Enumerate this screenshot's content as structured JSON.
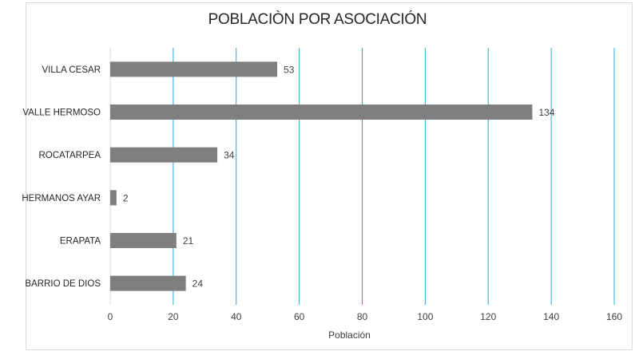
{
  "chart_data": {
    "type": "bar",
    "orientation": "horizontal",
    "title": "POBLACIÒN POR ASOCIACIÓN",
    "xlabel": "Población",
    "ylabel": "",
    "categories": [
      "VILLA CESAR",
      "VALLE HERMOSO",
      "ROCATARPEA",
      "HERMANOS AYAR",
      "ERAPATA",
      "BARRIO DE DIOS"
    ],
    "values": [
      53,
      134,
      34,
      2,
      21,
      24
    ],
    "xlim": [
      0,
      160
    ],
    "xticks": [
      "0",
      "20",
      "40",
      "60",
      "80",
      "100",
      "120",
      "140",
      "160"
    ],
    "grid": true,
    "legend": "none",
    "colors": {
      "bar": "#7f7f7f",
      "grid": "#29a8d8",
      "text": "#404040"
    }
  }
}
